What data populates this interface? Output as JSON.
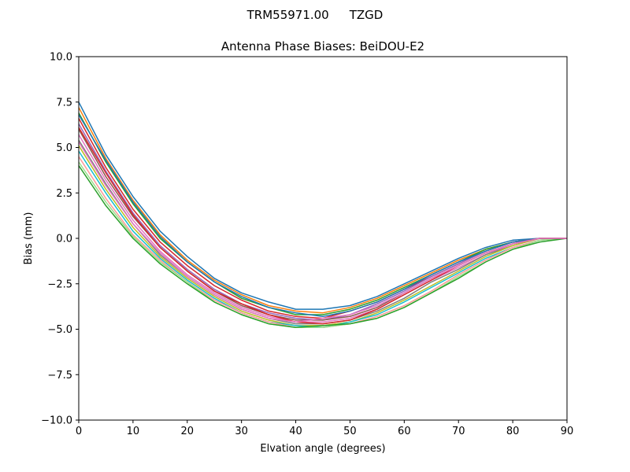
{
  "figure": {
    "suptitle_antenna": "TRM55971.00",
    "suptitle_radome": "TZGD"
  },
  "chart_data": {
    "type": "line",
    "title": "Antenna Phase Biases: BeiDOU-E2",
    "xlabel": "Elvation angle (degrees)",
    "ylabel": "Bias (mm)",
    "xlim": [
      0,
      90
    ],
    "ylim": [
      -10,
      10
    ],
    "xticks": [
      0,
      10,
      20,
      30,
      40,
      50,
      60,
      70,
      80,
      90
    ],
    "yticks": [
      -10.0,
      -7.5,
      -5.0,
      -2.5,
      0.0,
      2.5,
      5.0,
      7.5,
      10.0
    ],
    "ytick_labels": [
      "−10.0",
      "−7.5",
      "−5.0",
      "−2.5",
      "0.0",
      "2.5",
      "5.0",
      "7.5",
      "10.0"
    ],
    "grid": false,
    "x": [
      0,
      5,
      10,
      15,
      20,
      25,
      30,
      35,
      40,
      45,
      50,
      55,
      60,
      65,
      70,
      75,
      80,
      85,
      90
    ],
    "series": [
      {
        "color": "#1f77b4",
        "values": [
          7.5,
          4.6,
          2.3,
          0.4,
          -1.0,
          -2.2,
          -3.0,
          -3.5,
          -3.9,
          -3.9,
          -3.7,
          -3.2,
          -2.5,
          -1.8,
          -1.1,
          -0.5,
          -0.1,
          0.0,
          0.0
        ]
      },
      {
        "color": "#ff7f0e",
        "values": [
          7.2,
          4.4,
          2.1,
          0.2,
          -1.2,
          -2.3,
          -3.1,
          -3.7,
          -4.0,
          -4.1,
          -3.8,
          -3.3,
          -2.6,
          -1.9,
          -1.2,
          -0.6,
          -0.2,
          0.0,
          0.0
        ]
      },
      {
        "color": "#2ca02c",
        "values": [
          6.9,
          4.2,
          1.9,
          0.0,
          -1.3,
          -2.4,
          -3.3,
          -3.8,
          -4.2,
          -4.2,
          -3.9,
          -3.4,
          -2.7,
          -2.0,
          -1.3,
          -0.6,
          -0.2,
          0.0,
          0.0
        ]
      },
      {
        "color": "#d62728",
        "values": [
          6.6,
          3.9,
          1.6,
          -0.2,
          -1.5,
          -2.6,
          -3.4,
          -4.0,
          -4.3,
          -4.4,
          -4.0,
          -3.5,
          -2.8,
          -2.1,
          -1.4,
          -0.7,
          -0.2,
          0.0,
          0.0
        ]
      },
      {
        "color": "#9467bd",
        "values": [
          6.3,
          3.7,
          1.4,
          -0.4,
          -1.7,
          -2.8,
          -3.6,
          -4.1,
          -4.4,
          -4.5,
          -4.2,
          -3.6,
          -2.9,
          -2.1,
          -1.4,
          -0.7,
          -0.2,
          0.0,
          0.0
        ]
      },
      {
        "color": "#8c564b",
        "values": [
          6.0,
          3.4,
          1.2,
          -0.5,
          -1.8,
          -2.9,
          -3.7,
          -4.2,
          -4.5,
          -4.5,
          -4.3,
          -3.8,
          -3.0,
          -2.2,
          -1.5,
          -0.8,
          -0.3,
          0.0,
          0.0
        ]
      },
      {
        "color": "#e377c2",
        "values": [
          5.7,
          3.2,
          1.0,
          -0.7,
          -2.0,
          -3.0,
          -3.8,
          -4.3,
          -4.6,
          -4.6,
          -4.4,
          -3.9,
          -3.1,
          -2.3,
          -1.6,
          -0.9,
          -0.3,
          0.0,
          0.0
        ]
      },
      {
        "color": "#7f7f7f",
        "values": [
          5.4,
          3.0,
          0.8,
          -0.9,
          -2.1,
          -3.1,
          -3.9,
          -4.4,
          -4.7,
          -4.7,
          -4.5,
          -4.0,
          -3.3,
          -2.4,
          -1.7,
          -0.9,
          -0.4,
          0.0,
          0.0
        ]
      },
      {
        "color": "#bcbd22",
        "values": [
          5.1,
          2.7,
          0.6,
          -1.0,
          -2.2,
          -3.2,
          -4.0,
          -4.5,
          -4.8,
          -4.8,
          -4.6,
          -4.1,
          -3.4,
          -2.6,
          -1.8,
          -1.0,
          -0.4,
          0.0,
          0.0
        ]
      },
      {
        "color": "#17becf",
        "values": [
          4.8,
          2.5,
          0.4,
          -1.1,
          -2.3,
          -3.3,
          -4.1,
          -4.6,
          -4.8,
          -4.9,
          -4.6,
          -4.2,
          -3.5,
          -2.7,
          -1.9,
          -1.1,
          -0.5,
          -0.1,
          0.0
        ]
      },
      {
        "color": "#ff9896",
        "values": [
          4.5,
          2.2,
          0.2,
          -1.2,
          -2.4,
          -3.4,
          -4.1,
          -4.6,
          -4.9,
          -4.9,
          -4.7,
          -4.3,
          -3.7,
          -2.9,
          -2.0,
          -1.2,
          -0.5,
          -0.1,
          0.0
        ]
      },
      {
        "color": "#98df8a",
        "values": [
          4.2,
          2.0,
          0.1,
          -1.3,
          -2.4,
          -3.5,
          -4.2,
          -4.7,
          -4.9,
          -4.9,
          -4.7,
          -4.4,
          -3.8,
          -3.0,
          -2.1,
          -1.3,
          -0.6,
          -0.1,
          0.0
        ]
      },
      {
        "color": "#2ca02c",
        "values": [
          4.0,
          1.8,
          0.0,
          -1.4,
          -2.5,
          -3.5,
          -4.2,
          -4.7,
          -4.9,
          -4.8,
          -4.7,
          -4.4,
          -3.8,
          -3.0,
          -2.2,
          -1.3,
          -0.6,
          -0.2,
          0.0
        ]
      },
      {
        "color": "#1f77b4",
        "values": [
          6.8,
          4.3,
          2.0,
          0.1,
          -1.3,
          -2.4,
          -3.2,
          -3.8,
          -4.1,
          -4.3,
          -4.0,
          -3.5,
          -2.8,
          -2.0,
          -1.3,
          -0.7,
          -0.2,
          0.0,
          0.0
        ]
      },
      {
        "color": "#d62728",
        "values": [
          6.1,
          3.6,
          1.3,
          -0.5,
          -1.8,
          -2.9,
          -3.6,
          -4.2,
          -4.6,
          -4.7,
          -4.5,
          -3.9,
          -3.1,
          -2.3,
          -1.5,
          -0.8,
          -0.3,
          0.0,
          0.0
        ]
      },
      {
        "color": "#e377c2",
        "values": [
          5.3,
          2.9,
          0.8,
          -0.8,
          -2.1,
          -3.1,
          -3.9,
          -4.4,
          -4.6,
          -4.4,
          -4.2,
          -3.7,
          -3.0,
          -2.2,
          -1.5,
          -0.8,
          -0.3,
          0.0,
          0.0
        ]
      }
    ]
  }
}
